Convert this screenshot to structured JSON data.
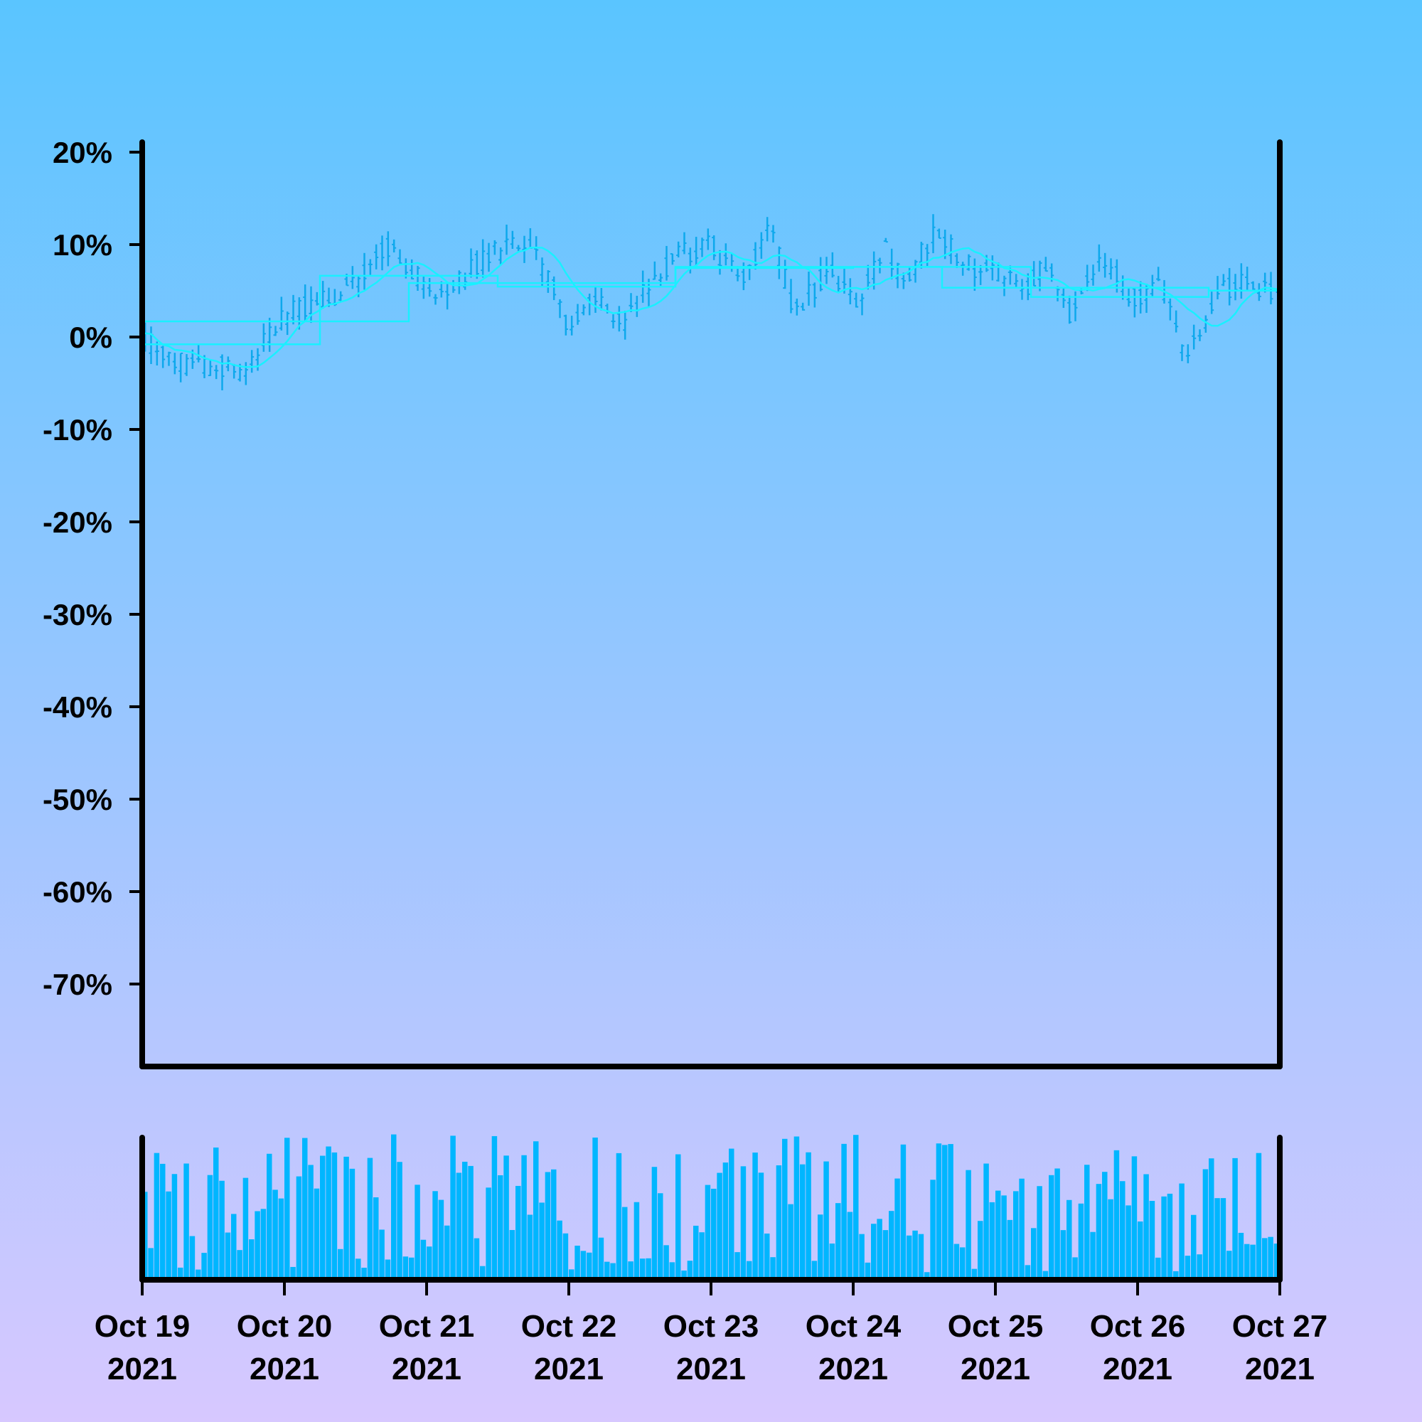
{
  "chart_data": {
    "type": "candlestick",
    "title": "",
    "xlabel": "",
    "ylabel": "",
    "y_unit": "%",
    "ylim": [
      -80,
      20
    ],
    "y_ticks": [
      20,
      10,
      0,
      -10,
      -20,
      -30,
      -40,
      -50,
      -60,
      -70
    ],
    "y_tick_labels": [
      "20%",
      "10%",
      "0%",
      "-10%",
      "-20%",
      "-30%",
      "-40%",
      "-50%",
      "-60%",
      "-70%"
    ],
    "x_range": [
      "2021-10-19",
      "2021-10-27"
    ],
    "x_ticks": [
      {
        "date": "2021-10-19",
        "line1": "Oct 19",
        "line2": "2021"
      },
      {
        "date": "2021-10-20",
        "line1": "Oct 20",
        "line2": "2021"
      },
      {
        "date": "2021-10-21",
        "line1": "Oct 21",
        "line2": "2021"
      },
      {
        "date": "2021-10-22",
        "line1": "Oct 22",
        "line2": "2021"
      },
      {
        "date": "2021-10-23",
        "line1": "Oct 23",
        "line2": "2021"
      },
      {
        "date": "2021-10-24",
        "line1": "Oct 24",
        "line2": "2021"
      },
      {
        "date": "2021-10-25",
        "line1": "Oct 25",
        "line2": "2021"
      },
      {
        "date": "2021-10-26",
        "line1": "Oct 26",
        "line2": "2021"
      },
      {
        "date": "2021-10-27",
        "line1": "Oct 27",
        "line2": "2021"
      }
    ],
    "price_path": [
      [
        "2021-10-19 00:00",
        0
      ],
      [
        "2021-10-19 04:00",
        -2.5
      ],
      [
        "2021-10-19 10:00",
        -3.5
      ],
      [
        "2021-10-19 14:00",
        -3
      ],
      [
        "2021-10-19 17:00",
        -4
      ],
      [
        "2021-10-19 22:00",
        1
      ],
      [
        "2021-10-20 02:00",
        3
      ],
      [
        "2021-10-20 08:00",
        4
      ],
      [
        "2021-10-20 12:00",
        6
      ],
      [
        "2021-10-20 17:00",
        10
      ],
      [
        "2021-10-20 22:00",
        7
      ],
      [
        "2021-10-21 03:00",
        4
      ],
      [
        "2021-10-21 07:00",
        7
      ],
      [
        "2021-10-21 11:00",
        9
      ],
      [
        "2021-10-21 17:00",
        10
      ],
      [
        "2021-10-21 21:00",
        6
      ],
      [
        "2021-10-22 00:00",
        1
      ],
      [
        "2021-10-22 05:00",
        4
      ],
      [
        "2021-10-22 09:00",
        1
      ],
      [
        "2021-10-22 14:00",
        6
      ],
      [
        "2021-10-22 19:00",
        9
      ],
      [
        "2021-10-23 00:00",
        10
      ],
      [
        "2021-10-23 05:00",
        6
      ],
      [
        "2021-10-23 10:00",
        12
      ],
      [
        "2021-10-23 14:00",
        3
      ],
      [
        "2021-10-23 20:00",
        7
      ],
      [
        "2021-10-24 01:00",
        3
      ],
      [
        "2021-10-24 05:00",
        10
      ],
      [
        "2021-10-24 09:00",
        6
      ],
      [
        "2021-10-24 14:00",
        12
      ],
      [
        "2021-10-24 18:00",
        8
      ],
      [
        "2021-10-25 00:00",
        7
      ],
      [
        "2021-10-25 05:00",
        5
      ],
      [
        "2021-10-25 09:00",
        8
      ],
      [
        "2021-10-25 13:00",
        2
      ],
      [
        "2021-10-25 18:00",
        9
      ],
      [
        "2021-10-25 23:00",
        4
      ],
      [
        "2021-10-26 04:00",
        6
      ],
      [
        "2021-10-26 08:00",
        -3
      ],
      [
        "2021-10-26 14:00",
        5
      ],
      [
        "2021-10-26 18:00",
        6
      ],
      [
        "2021-10-26 22:00",
        5
      ],
      [
        "2021-10-27 00:00",
        6
      ]
    ],
    "candles_per_day": 24,
    "series": [
      {
        "kind": "ohlc",
        "color": "#0da8ec"
      },
      {
        "kind": "step-average",
        "color": "#19f0ff"
      },
      {
        "kind": "moving-average",
        "color": "#19f0ff"
      }
    ],
    "volume": {
      "type": "bar",
      "color": "#00b6ff",
      "relative_max": 1.0
    },
    "grid": false,
    "legend": "none"
  }
}
